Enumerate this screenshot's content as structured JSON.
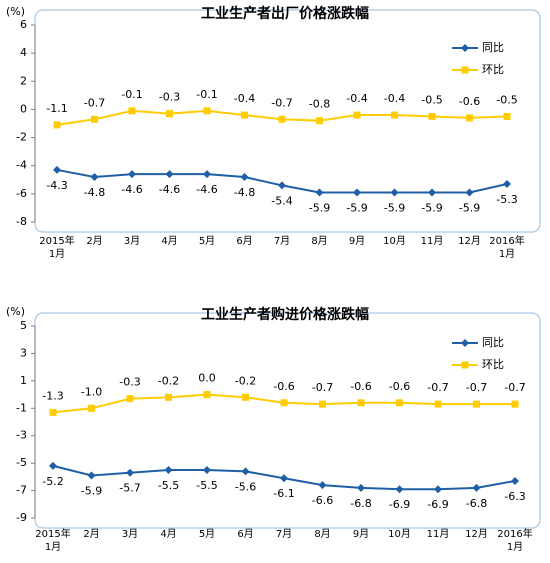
{
  "chart_data": [
    {
      "type": "line",
      "title": "工业生产者出厂价格涨跌幅",
      "y_unit": "(%)",
      "categories": [
        "2015年\n1月",
        "2月",
        "3月",
        "4月",
        "5月",
        "6月",
        "7月",
        "8月",
        "9月",
        "10月",
        "11月",
        "12月",
        "2016年\n1月"
      ],
      "series": [
        {
          "name": "同比",
          "color": "#1f5fa6",
          "marker": "diamond",
          "values": [
            -4.3,
            -4.8,
            -4.6,
            -4.6,
            -4.6,
            -4.8,
            -5.4,
            -5.9,
            -5.9,
            -5.9,
            -5.9,
            -5.9,
            -5.3
          ]
        },
        {
          "name": "环比",
          "color": "#ffcc00",
          "marker": "square",
          "values": [
            -1.1,
            -0.7,
            -0.1,
            -0.3,
            -0.1,
            -0.4,
            -0.7,
            -0.8,
            -0.4,
            -0.4,
            -0.5,
            -0.6,
            -0.5
          ]
        }
      ],
      "ylim": [
        -8,
        6
      ],
      "yticks": [
        -8,
        -6,
        -4,
        -2,
        0,
        2,
        4,
        6
      ],
      "legend": "upper right"
    },
    {
      "type": "line",
      "title": "工业生产者购进价格涨跌幅",
      "y_unit": "(%)",
      "categories": [
        "2015年\n1月",
        "2月",
        "3月",
        "4月",
        "5月",
        "6月",
        "7月",
        "8月",
        "9月",
        "10月",
        "11月",
        "12月",
        "2016年\n1月"
      ],
      "series": [
        {
          "name": "同比",
          "color": "#1f5fa6",
          "marker": "diamond",
          "values": [
            -5.2,
            -5.9,
            -5.7,
            -5.5,
            -5.5,
            -5.6,
            -6.1,
            -6.6,
            -6.8,
            -6.9,
            -6.9,
            -6.8,
            -6.3
          ]
        },
        {
          "name": "环比",
          "color": "#ffcc00",
          "marker": "square",
          "values": [
            -1.3,
            -1.0,
            -0.3,
            -0.2,
            0.0,
            -0.2,
            -0.6,
            -0.7,
            -0.6,
            -0.6,
            -0.7,
            -0.7,
            -0.7
          ],
          "value_labels": [
            "-1.3",
            "-1.0",
            "-0.3",
            "-0.2",
            "0.0",
            "-0.2",
            "-0.6",
            "-0.7",
            "-0.6",
            "-0.6",
            "-0.7",
            "-0.7",
            "-0.7"
          ]
        }
      ],
      "ylim": [
        -9,
        5
      ],
      "yticks": [
        -9,
        -7,
        -5,
        -3,
        -1,
        1,
        3,
        5
      ],
      "legend": "upper right"
    }
  ]
}
